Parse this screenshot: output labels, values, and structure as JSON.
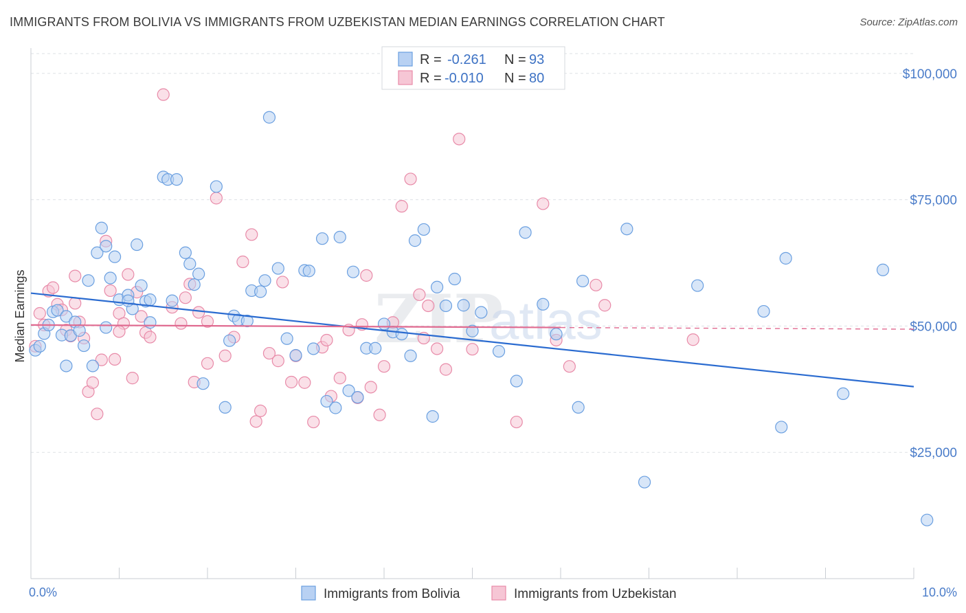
{
  "title": "IMMIGRANTS FROM BOLIVIA VS IMMIGRANTS FROM UZBEKISTAN MEDIAN EARNINGS CORRELATION CHART",
  "source": "Source: ZipAtlas.com",
  "watermark": {
    "zip": "ZIP",
    "atlas": "atlas"
  },
  "colors": {
    "blue": "#6a9fe0",
    "blue_fill": "#b8d1f3",
    "pink": "#e88aa8",
    "pink_fill": "#f6c6d5",
    "blue_line": "#2a6bd0",
    "pink_line": "#e06a90",
    "grid": "#dde1e6"
  },
  "legend": {
    "rows": [
      {
        "r_label": "R =",
        "r_value": "-0.261",
        "n_label": "N =",
        "n_value": "93"
      },
      {
        "r_label": "R =",
        "r_value": "-0.010",
        "n_label": "N =",
        "n_value": "80"
      }
    ]
  },
  "chart_data": {
    "type": "scatter",
    "ylabel": "Median Earnings",
    "xlim": [
      0,
      10
    ],
    "ylim": [
      0,
      105000
    ],
    "x_ticks": [
      "0.0%",
      "10.0%"
    ],
    "y_ticks": [
      {
        "value": 25000,
        "label": "$25,000"
      },
      {
        "value": 50000,
        "label": "$50,000"
      },
      {
        "value": 75000,
        "label": "$75,000"
      },
      {
        "value": 100000,
        "label": "$100,000"
      }
    ],
    "grid": true,
    "legend_position": "bottom",
    "series": [
      {
        "name": "Immigrants from Bolivia",
        "trend": {
          "x": [
            0,
            10
          ],
          "y": [
            56500,
            38000
          ],
          "dashed_from": null
        },
        "points": [
          [
            0.05,
            45200
          ],
          [
            0.1,
            46000
          ],
          [
            0.15,
            48500
          ],
          [
            0.2,
            50200
          ],
          [
            0.25,
            52800
          ],
          [
            0.3,
            53100
          ],
          [
            0.35,
            48200
          ],
          [
            0.4,
            51900
          ],
          [
            0.45,
            48100
          ],
          [
            0.5,
            50800
          ],
          [
            0.55,
            49100
          ],
          [
            0.6,
            46100
          ],
          [
            0.65,
            59000
          ],
          [
            0.7,
            42100
          ],
          [
            0.75,
            64500
          ],
          [
            0.8,
            69400
          ],
          [
            0.85,
            65800
          ],
          [
            0.9,
            59500
          ],
          [
            0.95,
            63700
          ],
          [
            1.0,
            55200
          ],
          [
            0.4,
            42100
          ],
          [
            1.1,
            56100
          ],
          [
            1.15,
            53400
          ],
          [
            1.2,
            66100
          ],
          [
            1.25,
            58000
          ],
          [
            1.3,
            54900
          ],
          [
            1.35,
            55200
          ],
          [
            1.1,
            55000
          ],
          [
            1.5,
            79500
          ],
          [
            1.55,
            79000
          ],
          [
            1.65,
            79000
          ],
          [
            1.75,
            64500
          ],
          [
            1.8,
            62300
          ],
          [
            1.85,
            58200
          ],
          [
            1.9,
            60300
          ],
          [
            1.95,
            38600
          ],
          [
            2.1,
            77600
          ],
          [
            2.2,
            33900
          ],
          [
            2.3,
            52000
          ],
          [
            2.35,
            51200
          ],
          [
            2.25,
            47100
          ],
          [
            2.5,
            57000
          ],
          [
            2.6,
            56800
          ],
          [
            2.7,
            91300
          ],
          [
            2.8,
            61400
          ],
          [
            2.9,
            47500
          ],
          [
            3.0,
            44200
          ],
          [
            3.1,
            61000
          ],
          [
            3.2,
            45500
          ],
          [
            3.3,
            67300
          ],
          [
            3.35,
            35100
          ],
          [
            3.45,
            33800
          ],
          [
            3.5,
            67600
          ],
          [
            3.6,
            37200
          ],
          [
            3.65,
            60700
          ],
          [
            3.7,
            35900
          ],
          [
            3.8,
            45600
          ],
          [
            3.9,
            45600
          ],
          [
            4.0,
            50400
          ],
          [
            4.1,
            48800
          ],
          [
            4.2,
            48400
          ],
          [
            4.3,
            44100
          ],
          [
            4.35,
            66900
          ],
          [
            4.45,
            69100
          ],
          [
            4.55,
            32100
          ],
          [
            4.6,
            57700
          ],
          [
            4.7,
            54000
          ],
          [
            4.8,
            59300
          ],
          [
            4.9,
            54100
          ],
          [
            5.0,
            49000
          ],
          [
            5.1,
            52700
          ],
          [
            5.3,
            45000
          ],
          [
            5.5,
            39100
          ],
          [
            5.6,
            68500
          ],
          [
            5.8,
            54300
          ],
          [
            5.95,
            48400
          ],
          [
            6.2,
            33900
          ],
          [
            6.25,
            58900
          ],
          [
            6.75,
            69200
          ],
          [
            6.95,
            19100
          ],
          [
            7.55,
            58000
          ],
          [
            8.3,
            52900
          ],
          [
            8.5,
            30000
          ],
          [
            8.55,
            63400
          ],
          [
            9.2,
            36600
          ],
          [
            9.65,
            61100
          ],
          [
            10.15,
            11600
          ],
          [
            1.35,
            50700
          ],
          [
            3.15,
            60900
          ],
          [
            2.65,
            59000
          ],
          [
            0.85,
            49700
          ],
          [
            1.6,
            55000
          ],
          [
            2.45,
            51000
          ]
        ]
      },
      {
        "name": "Immigrants from Uzbekistan",
        "trend": {
          "x": [
            0,
            6.0
          ],
          "y": [
            50200,
            49700
          ],
          "dashed_from": 6.0,
          "dashed_to": 10
        },
        "points": [
          [
            0.05,
            46000
          ],
          [
            0.1,
            52500
          ],
          [
            0.15,
            50200
          ],
          [
            0.2,
            56900
          ],
          [
            0.25,
            57600
          ],
          [
            0.3,
            54300
          ],
          [
            0.35,
            53200
          ],
          [
            0.4,
            49200
          ],
          [
            0.45,
            48000
          ],
          [
            0.5,
            59900
          ],
          [
            0.55,
            50800
          ],
          [
            0.6,
            47600
          ],
          [
            0.65,
            37000
          ],
          [
            0.7,
            38800
          ],
          [
            0.75,
            32600
          ],
          [
            0.8,
            43300
          ],
          [
            0.85,
            66800
          ],
          [
            0.9,
            57000
          ],
          [
            0.95,
            43400
          ],
          [
            1.0,
            52500
          ],
          [
            1.05,
            50500
          ],
          [
            1.1,
            60200
          ],
          [
            1.15,
            39700
          ],
          [
            1.2,
            56700
          ],
          [
            1.25,
            51900
          ],
          [
            1.3,
            48700
          ],
          [
            1.35,
            47800
          ],
          [
            1.5,
            95800
          ],
          [
            1.6,
            53700
          ],
          [
            1.7,
            50500
          ],
          [
            1.75,
            55600
          ],
          [
            1.8,
            58300
          ],
          [
            1.85,
            38900
          ],
          [
            1.9,
            52700
          ],
          [
            2.0,
            42600
          ],
          [
            2.1,
            75300
          ],
          [
            2.2,
            44100
          ],
          [
            2.3,
            47800
          ],
          [
            2.4,
            62700
          ],
          [
            2.5,
            68100
          ],
          [
            2.55,
            31100
          ],
          [
            2.6,
            33200
          ],
          [
            2.7,
            44600
          ],
          [
            2.8,
            43100
          ],
          [
            2.85,
            58700
          ],
          [
            2.95,
            38900
          ],
          [
            3.0,
            44100
          ],
          [
            3.1,
            38800
          ],
          [
            3.2,
            31000
          ],
          [
            3.3,
            45800
          ],
          [
            3.35,
            47200
          ],
          [
            3.4,
            36100
          ],
          [
            3.5,
            39700
          ],
          [
            3.6,
            49200
          ],
          [
            3.7,
            35800
          ],
          [
            3.75,
            50300
          ],
          [
            3.8,
            60000
          ],
          [
            3.85,
            37900
          ],
          [
            3.95,
            32400
          ],
          [
            4.0,
            42000
          ],
          [
            4.1,
            50700
          ],
          [
            4.2,
            73700
          ],
          [
            4.3,
            79100
          ],
          [
            4.4,
            56200
          ],
          [
            4.45,
            47600
          ],
          [
            4.5,
            54000
          ],
          [
            4.6,
            45500
          ],
          [
            4.7,
            41400
          ],
          [
            4.85,
            87000
          ],
          [
            5.0,
            45400
          ],
          [
            5.5,
            31000
          ],
          [
            5.8,
            74200
          ],
          [
            6.1,
            42000
          ],
          [
            6.4,
            58100
          ],
          [
            6.5,
            54100
          ],
          [
            5.95,
            47200
          ],
          [
            1.0,
            48900
          ],
          [
            2.0,
            50900
          ],
          [
            0.5,
            54500
          ],
          [
            7.5,
            47300
          ]
        ]
      }
    ]
  },
  "bottom_legend": [
    "Immigrants from Bolivia",
    "Immigrants from Uzbekistan"
  ]
}
